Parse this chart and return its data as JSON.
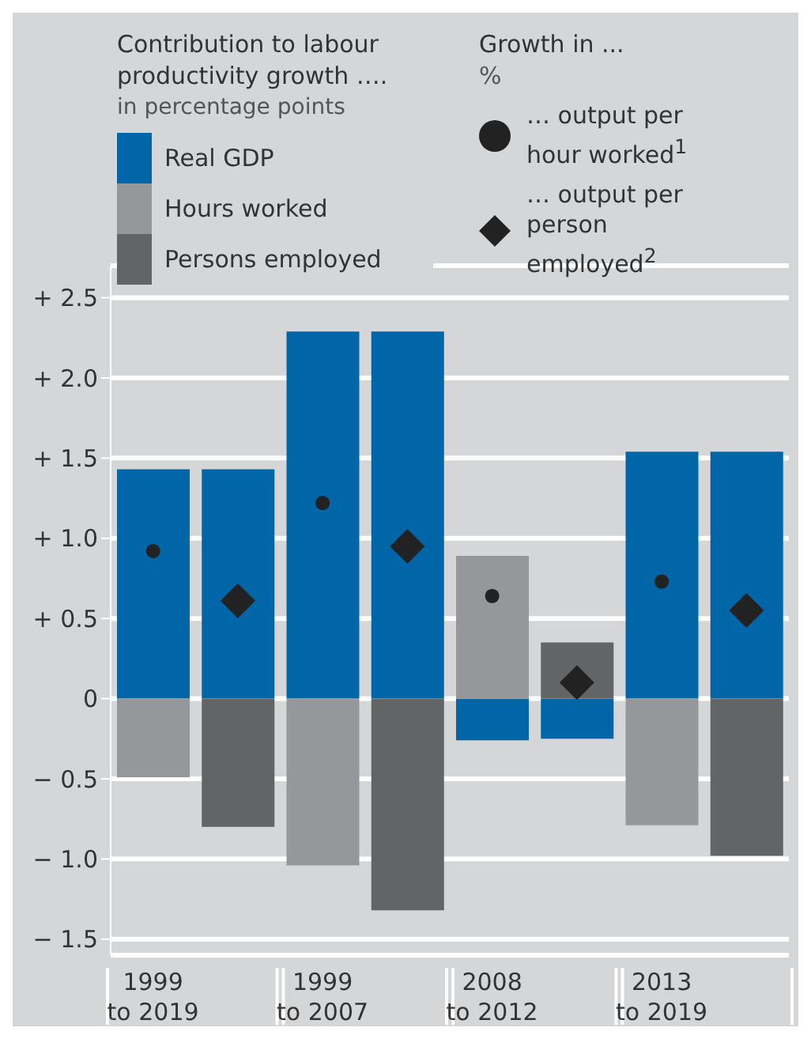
{
  "chart_data": {
    "type": "bar",
    "title": "Contribution to labour productivity growth ….",
    "subtitle": "in percentage points",
    "annotations": [
      "Growth in ...",
      "%"
    ],
    "categories": [
      "1999 to 2019",
      null,
      "1999 to 2007",
      null,
      "2008 to 2012",
      null,
      "2013 to 2019",
      null
    ],
    "stacked": true,
    "grid": "y",
    "legend": "top",
    "series": [
      {
        "name": "Real GDP",
        "color": "#0066a8",
        "values": [
          1.43,
          1.43,
          2.29,
          2.29,
          -0.26,
          -0.25,
          1.54,
          1.54
        ]
      },
      {
        "name": "Hours worked",
        "color": "#96979a",
        "values": [
          -0.49,
          null,
          -1.04,
          null,
          0.89,
          null,
          -0.79,
          null
        ]
      },
      {
        "name": "Persons employed",
        "color": "#636466",
        "values": [
          null,
          -0.8,
          null,
          -1.32,
          null,
          0.35,
          null,
          -0.98
        ]
      },
      {
        "name": "… output per hour worked$^{1}$",
        "type": "scatter",
        "marker": "circle",
        "color": "#222222",
        "values": [
          0.92,
          null,
          1.22,
          null,
          0.64,
          null,
          0.73,
          null
        ]
      },
      {
        "name": "… output per person employed$^{2}$",
        "type": "scatter",
        "marker": "diamond",
        "color": "#222222",
        "values": [
          null,
          0.61,
          null,
          0.95,
          null,
          0.1,
          null,
          0.55
        ]
      }
    ],
    "ylim": [
      -1.6,
      2.7
    ],
    "yticks": [
      {
        "value": -1.5,
        "label": "− 1.5"
      },
      {
        "value": -1,
        "label": "− 1.0"
      },
      {
        "value": -0.5,
        "label": "− 0.5"
      },
      0,
      {
        "value": 0.5,
        "label": "+ 0.5"
      },
      {
        "value": 1,
        "label": "+ 1.0"
      },
      {
        "value": 1.5,
        "label": "+ 1.5"
      },
      {
        "value": 2,
        "label": "+ 2.0"
      },
      {
        "value": 2.5,
        "label": "+ 2.5"
      }
    ]
  }
}
